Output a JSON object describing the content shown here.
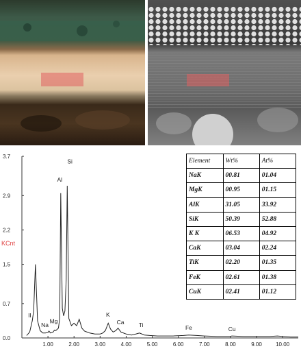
{
  "colors": {
    "spectrum_line": "#222222",
    "ylabel_color": "#e04040",
    "highlight": "#e06060"
  },
  "chart_data": {
    "type": "line",
    "ylabel": "KCnt",
    "ylim": [
      0,
      3.7
    ],
    "xlim": [
      0,
      10.6
    ],
    "y_ticks": [
      "3.7",
      "2.9",
      "2.2",
      "1.5",
      "0.7",
      "0.0"
    ],
    "y_tick_values": [
      3.7,
      2.9,
      2.2,
      1.5,
      0.7,
      0.0
    ],
    "x_ticks": [
      "1.00",
      "2.00",
      "3.00",
      "4.00",
      "5.00",
      "6.00",
      "7.00",
      "8.00",
      "9.00",
      "10.00"
    ],
    "x_tick_values": [
      1,
      2,
      3,
      4,
      5,
      6,
      7,
      8,
      9,
      10
    ],
    "series": [
      {
        "x": [
          0.18,
          0.3,
          0.4,
          0.45,
          0.52,
          0.6,
          0.7,
          0.8,
          0.9,
          1.0,
          1.04,
          1.1,
          1.2,
          1.25,
          1.3,
          1.4,
          1.45,
          1.49,
          1.55,
          1.6,
          1.65,
          1.7,
          1.74,
          1.8,
          1.9,
          2.0,
          2.1,
          2.2,
          2.3,
          2.4,
          2.6,
          2.8,
          3.0,
          3.1,
          3.2,
          3.31,
          3.4,
          3.5,
          3.6,
          3.69,
          3.8,
          4.0,
          4.2,
          4.3,
          4.51,
          4.7,
          4.9,
          5.2,
          5.5,
          5.8,
          6.2,
          6.4,
          6.7,
          7.0,
          7.5,
          8.0,
          8.05,
          8.5,
          9.0,
          9.5,
          9.8,
          10.0,
          10.3,
          10.6
        ],
        "y": [
          0.05,
          0.12,
          0.35,
          0.55,
          1.5,
          0.35,
          0.15,
          0.1,
          0.1,
          0.11,
          0.14,
          0.1,
          0.12,
          0.16,
          0.15,
          0.2,
          0.4,
          2.95,
          0.6,
          0.45,
          0.55,
          1.2,
          3.1,
          0.4,
          0.25,
          0.3,
          0.25,
          0.38,
          0.2,
          0.14,
          0.1,
          0.08,
          0.08,
          0.1,
          0.15,
          0.3,
          0.18,
          0.12,
          0.15,
          0.2,
          0.12,
          0.08,
          0.06,
          0.07,
          0.1,
          0.06,
          0.05,
          0.04,
          0.04,
          0.04,
          0.05,
          0.06,
          0.05,
          0.04,
          0.03,
          0.03,
          0.04,
          0.03,
          0.03,
          0.03,
          0.04,
          0.03,
          0.02,
          0.02
        ]
      }
    ],
    "annotations": [
      {
        "text": "Si",
        "x": 1.84,
        "y": 3.55
      },
      {
        "text": "Al",
        "x": 1.45,
        "y": 3.18
      },
      {
        "text": "K",
        "x": 3.3,
        "y": 0.43
      },
      {
        "text": "Ca",
        "x": 3.78,
        "y": 0.28
      },
      {
        "text": "Ti",
        "x": 4.57,
        "y": 0.22
      },
      {
        "text": "Fe",
        "x": 6.4,
        "y": 0.17
      },
      {
        "text": "Cu",
        "x": 8.06,
        "y": 0.14
      },
      {
        "text": "Mg",
        "x": 1.22,
        "y": 0.3
      },
      {
        "text": "Na",
        "x": 0.88,
        "y": 0.22
      },
      {
        "text": "II",
        "x": 0.3,
        "y": 0.42
      }
    ]
  },
  "table": {
    "headers": [
      "Element",
      "Wt%",
      "At%"
    ],
    "rows": [
      [
        "NaK",
        "00.81",
        "01.04"
      ],
      [
        "MgK",
        "00.95",
        "01.15"
      ],
      [
        "AlK",
        "31.05",
        "33.92"
      ],
      [
        "SiK",
        "50.39",
        "52.88"
      ],
      [
        "K K",
        "06.53",
        "04.92"
      ],
      [
        "CaK",
        "03.04",
        "02.24"
      ],
      [
        "TiK",
        "02.20",
        "01.35"
      ],
      [
        "FeK",
        "02.61",
        "01.38"
      ],
      [
        "CuK",
        "02.41",
        "01.12"
      ]
    ]
  }
}
